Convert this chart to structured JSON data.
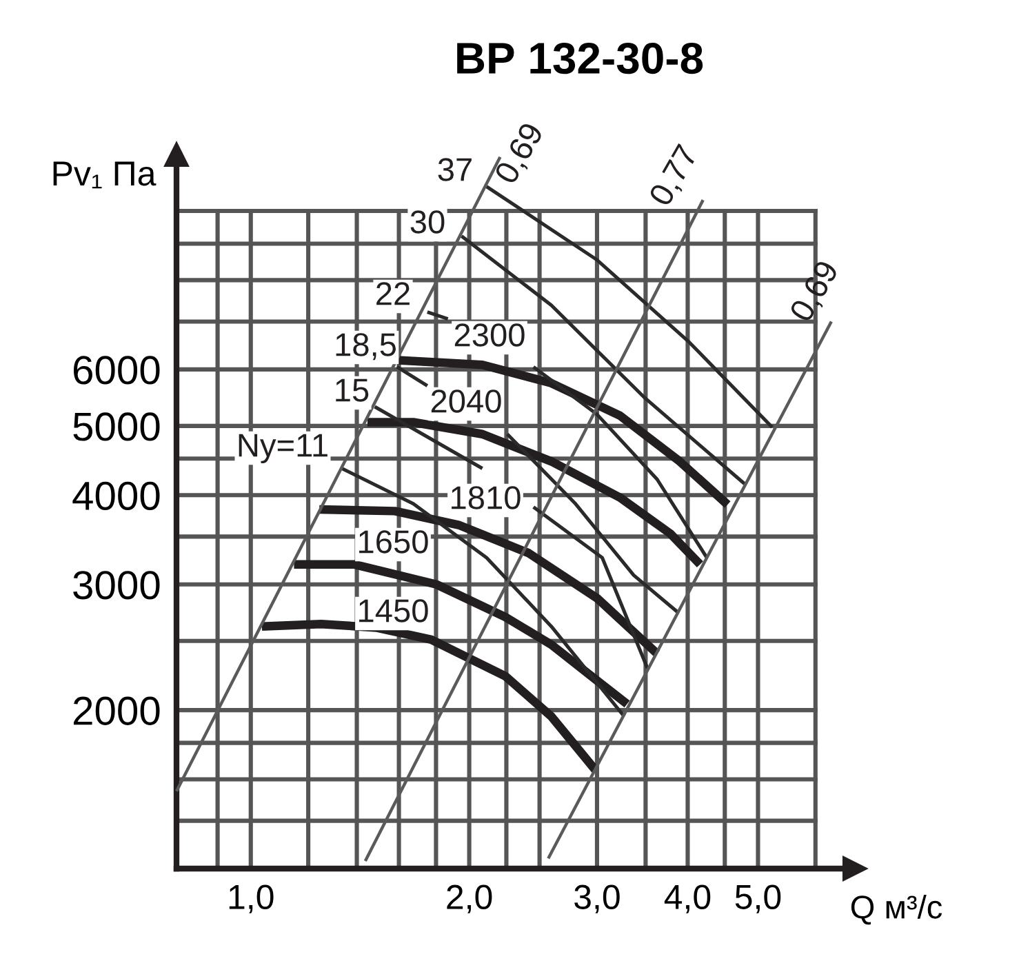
{
  "chart_data": {
    "type": "line",
    "title": "ВР 132-30-8",
    "xlabel": "Q м³/с",
    "ylabel": "Pv₁ Па",
    "log": "xy",
    "grid": true,
    "legend": false,
    "marker": "none",
    "line_style": "solid",
    "xlim": [
      0.79,
      6.8
    ],
    "ylim": [
      1200,
      12000
    ],
    "xticks": [
      {
        "value": 0.9,
        "label": null
      },
      {
        "value": 1.0,
        "label": "1,0"
      },
      {
        "value": 1.2,
        "label": null
      },
      {
        "value": 1.4,
        "label": null
      },
      {
        "value": 1.6,
        "label": null
      },
      {
        "value": 1.8,
        "label": null
      },
      {
        "value": 2.0,
        "label": "2,0"
      },
      {
        "value": 2.25,
        "label": null
      },
      {
        "value": 2.5,
        "label": null
      },
      {
        "value": 3.0,
        "label": "3,0"
      },
      {
        "value": 3.5,
        "label": null
      },
      {
        "value": 4.0,
        "label": "4,0"
      },
      {
        "value": 4.5,
        "label": null
      },
      {
        "value": 5.0,
        "label": "5,0"
      },
      {
        "value": 6.0,
        "label": null
      }
    ],
    "yticks": [
      {
        "value": 1400,
        "label": null
      },
      {
        "value": 1600,
        "label": null
      },
      {
        "value": 1800,
        "label": null
      },
      2000,
      {
        "value": 2500,
        "label": null
      },
      3000,
      {
        "value": 3500,
        "label": null
      },
      4000,
      {
        "value": 4500,
        "label": null
      },
      5000,
      6000,
      {
        "value": 7000,
        "label": null
      },
      {
        "value": 8000,
        "label": null
      },
      {
        "value": 9000,
        "label": null
      },
      {
        "value": 10000,
        "label": null
      }
    ],
    "series": [
      {
        "color": "#231f20",
        "x": [
          1.036,
          1.25,
          1.489,
          1.773,
          2.245,
          2.595,
          2.983
        ],
        "values": [
          2620,
          2640,
          2610,
          2510,
          2230,
          1960,
          1650
        ]
      },
      {
        "color": "#231f20",
        "x": [
          1.147,
          1.387,
          1.802,
          2.243,
          2.595,
          3.0,
          3.3
        ],
        "values": [
          3200,
          3200,
          3000,
          2700,
          2470,
          2200,
          2040
        ]
      },
      {
        "color": "#231f20",
        "x": [
          1.243,
          1.58,
          1.939,
          2.413,
          3.0,
          3.63
        ],
        "values": [
          3820,
          3800,
          3630,
          3320,
          2870,
          2400
        ]
      },
      {
        "color": "#231f20",
        "x": [
          1.448,
          1.675,
          2.085,
          2.595,
          3.226,
          3.79,
          4.16
        ],
        "values": [
          5060,
          5060,
          4870,
          4460,
          3970,
          3530,
          3200
        ]
      },
      {
        "color": "#231f20",
        "x": [
          1.592,
          2.085,
          2.595,
          3.226,
          3.9,
          4.54
        ],
        "values": [
          6180,
          6090,
          5740,
          5170,
          4460,
          3880
        ]
      },
      {
        "color": "#2a2a2a",
        "x": [
          1.335,
          1.675,
          2.113,
          2.595,
          3.27
        ],
        "values": [
          4360,
          3890,
          3270,
          2620,
          1960
        ]
      },
      {
        "color": "#2a2a2a",
        "x": [
          1.482,
          2.085,
          2.25,
          2.452,
          3.05,
          3.52
        ],
        "values": [
          5320,
          4360,
          null,
          3850,
          3270,
          2290
        ]
      },
      {
        "color": "#2a2a2a",
        "x": [
          1.59,
          1.751,
          1.9,
          2.257,
          2.796,
          3.37,
          3.88
        ],
        "values": [
          6050,
          5690,
          null,
          4870,
          3900,
          3090,
          2740
        ]
      },
      {
        "color": "#2a2a2a",
        "x": [
          1.751,
          1.869,
          2.1,
          2.452,
          3.0,
          3.63,
          4.25
        ],
        "values": [
          7220,
          7060,
          null,
          6050,
          5190,
          4210,
          3270
        ]
      },
      {
        "color": "#2a2a2a",
        "x": [
          1.952,
          2.595,
          3.48,
          4.79
        ],
        "values": [
          9220,
          7380,
          5490,
          4150
        ]
      },
      {
        "color": "#2a2a2a",
        "x": [
          2.113,
          3.0,
          4.02,
          5.23
        ],
        "values": [
          10820,
          8540,
          6550,
          4980
        ]
      },
      {
        "color": "#5a5a5a",
        "x": [
          0.79,
          2.206
        ],
        "values": [
          1540,
          11900
        ]
      },
      {
        "color": "#5a5a5a",
        "x": [
          1.438,
          4.2
        ],
        "values": [
          1230,
          10360
        ]
      },
      {
        "color": "#5a5a5a",
        "x": [
          2.57,
          6.31
        ],
        "values": [
          1240,
          7000
        ]
      }
    ],
    "annotations": [
      "1450",
      "1650",
      "1810",
      "2040",
      "2300",
      "Nу=11",
      "15",
      "18,5",
      "22",
      "30",
      "37",
      "0,69",
      "0,77",
      "0,69"
    ]
  }
}
